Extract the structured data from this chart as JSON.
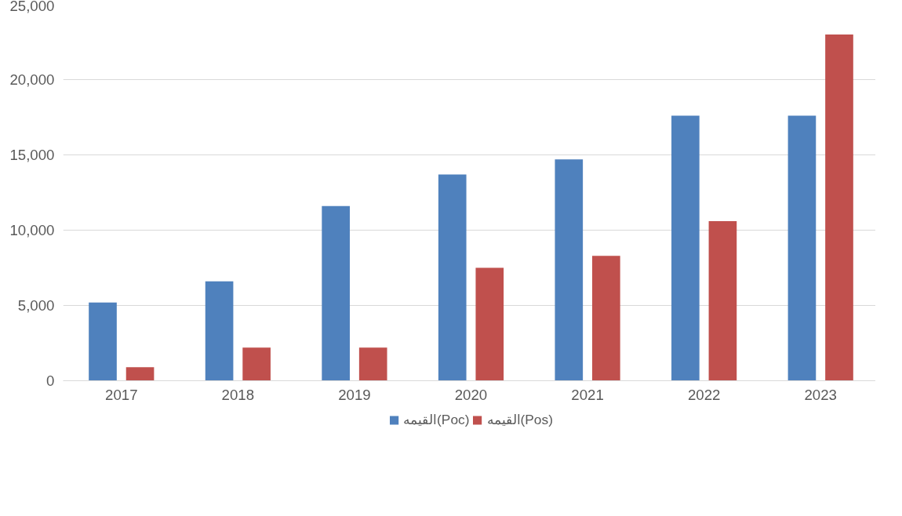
{
  "chart_data": {
    "type": "bar",
    "categories": [
      "2017",
      "2018",
      "2019",
      "2020",
      "2021",
      "2022",
      "2023"
    ],
    "series": [
      {
        "name": "القيمه(Poc)",
        "color": "#4f81bd",
        "values": [
          5200,
          6600,
          11600,
          13700,
          14700,
          17600,
          17600
        ]
      },
      {
        "name": "القيمه(Pos)",
        "color": "#c0504d",
        "values": [
          900,
          2200,
          2200,
          7500,
          8300,
          10600,
          23000
        ]
      }
    ],
    "ylim": [
      0,
      25000
    ],
    "yticks": [
      {
        "value": 0,
        "label": "0"
      },
      {
        "value": 5000,
        "label": "5,000"
      },
      {
        "value": 10000,
        "label": "10,000"
      },
      {
        "value": 15000,
        "label": "15,000"
      },
      {
        "value": 20000,
        "label": "20,000"
      },
      {
        "value": 25000,
        "label": "25,000"
      }
    ],
    "grid": "y",
    "legend": "bottom"
  }
}
